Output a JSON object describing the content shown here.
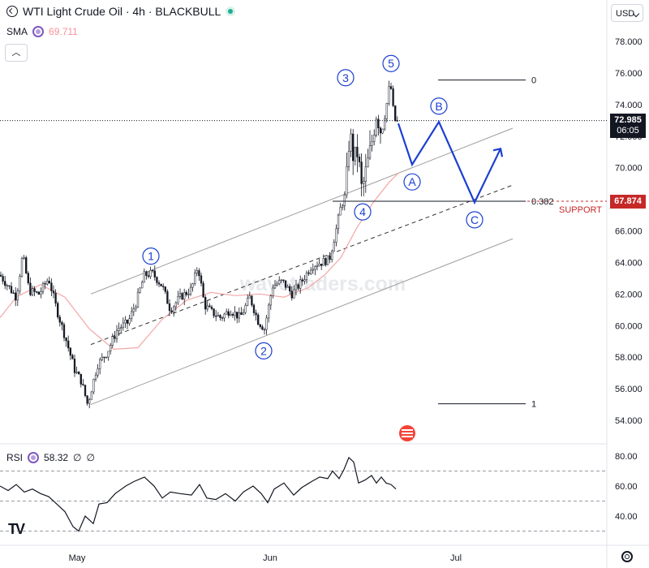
{
  "header": {
    "title": "WTI Light Crude Oil · 4h · BLACKBULL",
    "sma_label": "SMA",
    "sma_value": "69.711",
    "currency": "USD",
    "status_color": "#22ab94"
  },
  "price_axis": {
    "ticks": [
      "78.000",
      "76.000",
      "74.000",
      "72.000",
      "70.000",
      "68.000",
      "66.000",
      "64.000",
      "62.000",
      "60.000",
      "58.000",
      "56.000",
      "54.000"
    ],
    "current_price": "72.985",
    "countdown": "06:05",
    "support_price": "67.874"
  },
  "time_axis": {
    "labels": [
      "May",
      "Jun",
      "Jul"
    ]
  },
  "watermark": "wavetraders.com",
  "rsi": {
    "label": "RSI",
    "value": "58.32",
    "extra1": "∅",
    "extra2": "∅",
    "ticks": [
      "80.00",
      "60.00",
      "40.00"
    ],
    "levels": [
      70,
      50,
      30
    ]
  },
  "annotations": {
    "wave_labels": [
      "1",
      "2",
      "3",
      "4",
      "5",
      "A",
      "B",
      "C"
    ],
    "fib_0": "0",
    "fib_382": "0.382",
    "fib_1": "1",
    "support_label": "SUPPORT"
  },
  "colors": {
    "wave": "#1a3fd1",
    "support": "#c62828",
    "sma": "#f4a6a6",
    "rsi_line": "#131722"
  },
  "chart_data": {
    "type": "candlestick",
    "title": "WTI Light Crude Oil · 4h · BLACKBULL",
    "ylim": [
      53.5,
      79
    ],
    "price_path": [
      [
        0,
        63.2
      ],
      [
        10,
        62.5
      ],
      [
        20,
        61.8
      ],
      [
        28,
        64.5
      ],
      [
        36,
        62.2
      ],
      [
        48,
        62.0
      ],
      [
        60,
        63.0
      ],
      [
        70,
        61.0
      ],
      [
        82,
        59.0
      ],
      [
        92,
        57.2
      ],
      [
        100,
        56.5
      ],
      [
        108,
        55.0
      ],
      [
        120,
        57.5
      ],
      [
        132,
        58.3
      ],
      [
        145,
        59.8
      ],
      [
        158,
        60.2
      ],
      [
        168,
        61.5
      ],
      [
        178,
        63.2
      ],
      [
        188,
        63.3
      ],
      [
        200,
        62.5
      ],
      [
        210,
        61.0
      ],
      [
        222,
        61.8
      ],
      [
        236,
        62.3
      ],
      [
        244,
        63.8
      ],
      [
        252,
        61.3
      ],
      [
        262,
        60.8
      ],
      [
        272,
        60.5
      ],
      [
        284,
        61.0
      ],
      [
        296,
        60.5
      ],
      [
        308,
        61.8
      ],
      [
        318,
        60.3
      ],
      [
        326,
        59.8
      ],
      [
        336,
        62.5
      ],
      [
        348,
        62.8
      ],
      [
        360,
        62.0
      ],
      [
        372,
        62.8
      ],
      [
        384,
        63.8
      ],
      [
        396,
        64.0
      ],
      [
        406,
        64.2
      ],
      [
        414,
        66.0
      ],
      [
        420,
        67.5
      ],
      [
        426,
        68.3
      ],
      [
        431,
        72.3
      ],
      [
        436,
        70.5
      ],
      [
        441,
        71.0
      ],
      [
        446,
        68.5
      ],
      [
        452,
        70.0
      ],
      [
        458,
        71.5
      ],
      [
        464,
        73.5
      ],
      [
        470,
        72.2
      ],
      [
        476,
        73.8
      ],
      [
        481,
        75.5
      ],
      [
        486,
        73.0
      ],
      [
        491,
        72.9
      ]
    ],
    "sma_path": [
      [
        0,
        60.5
      ],
      [
        20,
        61.8
      ],
      [
        50,
        62.6
      ],
      [
        80,
        61.8
      ],
      [
        110,
        59.8
      ],
      [
        140,
        58.5
      ],
      [
        170,
        58.6
      ],
      [
        200,
        60.4
      ],
      [
        230,
        61.6
      ],
      [
        260,
        62.1
      ],
      [
        290,
        61.9
      ],
      [
        320,
        62.0
      ],
      [
        350,
        61.8
      ],
      [
        380,
        62.4
      ],
      [
        400,
        63.2
      ],
      [
        420,
        64.3
      ],
      [
        440,
        66.2
      ],
      [
        460,
        67.8
      ],
      [
        480,
        69.1
      ],
      [
        492,
        69.7
      ]
    ],
    "channel_upper": [
      [
        112,
        62.0
      ],
      [
        632,
        72.5
      ]
    ],
    "channel_mid": [
      [
        112,
        58.8
      ],
      [
        632,
        68.9
      ]
    ],
    "channel_lower": [
      [
        112,
        55.0
      ],
      [
        632,
        65.5
      ]
    ],
    "projection": {
      "points": [
        [
          491,
          72.8
        ],
        [
          508,
          70.2
        ],
        [
          541,
          72.9
        ],
        [
          585,
          67.8
        ],
        [
          617,
          71.2
        ]
      ],
      "labels": [
        {
          "text": "A",
          "x": 508,
          "y": 69.1
        },
        {
          "text": "B",
          "x": 541,
          "y": 73.9
        },
        {
          "text": "C",
          "x": 585,
          "y": 66.7
        }
      ]
    },
    "wave_counts": [
      {
        "text": "1",
        "x": 186,
        "y": 64.4
      },
      {
        "text": "2",
        "x": 325,
        "y": 58.4
      },
      {
        "text": "3",
        "x": 426,
        "y": 75.7
      },
      {
        "text": "4",
        "x": 447,
        "y": 67.2
      },
      {
        "text": "5",
        "x": 482,
        "y": 76.6
      }
    ],
    "fib_levels": [
      {
        "label": "0",
        "value": 75.55,
        "x1": 540,
        "x2": 648
      },
      {
        "label": "0.382",
        "value": 67.874,
        "x1": 410,
        "x2": 648
      },
      {
        "label": "1",
        "value": 55.05,
        "x1": 540,
        "x2": 648
      }
    ],
    "current_price": 72.985,
    "support": 67.874,
    "rsi": {
      "value": 58.32,
      "ylim": [
        24,
        85
      ],
      "levels": [
        70,
        50,
        30
      ],
      "path": [
        [
          0,
          60
        ],
        [
          10,
          57
        ],
        [
          20,
          61
        ],
        [
          30,
          56
        ],
        [
          40,
          58
        ],
        [
          50,
          55
        ],
        [
          60,
          53
        ],
        [
          70,
          48
        ],
        [
          80,
          43
        ],
        [
          90,
          33
        ],
        [
          97,
          30
        ],
        [
          105,
          40
        ],
        [
          115,
          35
        ],
        [
          122,
          48
        ],
        [
          132,
          49
        ],
        [
          142,
          55
        ],
        [
          155,
          60
        ],
        [
          165,
          63
        ],
        [
          178,
          66
        ],
        [
          190,
          60
        ],
        [
          200,
          52
        ],
        [
          210,
          56
        ],
        [
          222,
          55
        ],
        [
          236,
          54
        ],
        [
          246,
          61
        ],
        [
          255,
          52
        ],
        [
          266,
          51
        ],
        [
          278,
          55
        ],
        [
          290,
          50
        ],
        [
          300,
          56
        ],
        [
          312,
          60
        ],
        [
          322,
          55
        ],
        [
          330,
          49
        ],
        [
          338,
          58
        ],
        [
          350,
          62
        ],
        [
          362,
          54
        ],
        [
          372,
          59
        ],
        [
          384,
          63
        ],
        [
          394,
          66
        ],
        [
          404,
          65
        ],
        [
          410,
          70
        ],
        [
          418,
          65
        ],
        [
          424,
          71
        ],
        [
          430,
          79
        ],
        [
          436,
          76
        ],
        [
          442,
          62
        ],
        [
          450,
          64
        ],
        [
          458,
          67
        ],
        [
          464,
          62
        ],
        [
          470,
          66
        ],
        [
          476,
          62
        ],
        [
          482,
          61
        ],
        [
          488,
          58
        ]
      ]
    }
  }
}
